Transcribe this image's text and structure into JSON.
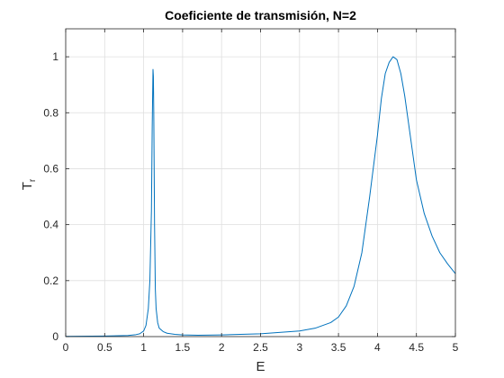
{
  "chart_data": {
    "type": "line",
    "title": "Coeficiente de transmisión, N=2",
    "xlabel": "E",
    "ylabel": "T",
    "ylabel_subscript": "r",
    "xlim": [
      0,
      5
    ],
    "ylim": [
      0,
      1.1
    ],
    "xticks": [
      0,
      0.5,
      1,
      1.5,
      2,
      2.5,
      3,
      3.5,
      4,
      4.5,
      5
    ],
    "yticks": [
      0,
      0.2,
      0.4,
      0.6,
      0.8,
      1
    ],
    "xtick_labels": [
      "0",
      "0.5",
      "1",
      "1.5",
      "2",
      "2.5",
      "3",
      "3.5",
      "4",
      "4.5",
      "5"
    ],
    "ytick_labels": [
      "0",
      "0.2",
      "0.4",
      "0.6",
      "0.8",
      "1"
    ],
    "grid": true,
    "colors": {
      "line": "#0072BD",
      "grid": "#dfdfdf",
      "axis": "#262626"
    },
    "series": [
      {
        "x": [
          0,
          0.5,
          0.8,
          0.9,
          0.95,
          1.0,
          1.03,
          1.06,
          1.08,
          1.1,
          1.11,
          1.12,
          1.125,
          1.13,
          1.14,
          1.15,
          1.16,
          1.18,
          1.2,
          1.25,
          1.3,
          1.4,
          1.5,
          1.7,
          2.0,
          2.5,
          3.0,
          3.2,
          3.4,
          3.5,
          3.6,
          3.7,
          3.8,
          3.9,
          4.0,
          4.05,
          4.1,
          4.15,
          4.2,
          4.25,
          4.3,
          4.35,
          4.4,
          4.45,
          4.5,
          4.6,
          4.7,
          4.8,
          4.9,
          5.0
        ],
        "y": [
          0.001,
          0.002,
          0.004,
          0.007,
          0.01,
          0.02,
          0.04,
          0.1,
          0.2,
          0.45,
          0.75,
          0.955,
          0.93,
          0.8,
          0.4,
          0.17,
          0.1,
          0.05,
          0.03,
          0.018,
          0.012,
          0.008,
          0.006,
          0.005,
          0.006,
          0.01,
          0.02,
          0.03,
          0.05,
          0.07,
          0.11,
          0.18,
          0.3,
          0.5,
          0.72,
          0.85,
          0.94,
          0.98,
          1.0,
          0.99,
          0.94,
          0.86,
          0.76,
          0.66,
          0.56,
          0.44,
          0.36,
          0.3,
          0.26,
          0.225
        ]
      }
    ]
  }
}
